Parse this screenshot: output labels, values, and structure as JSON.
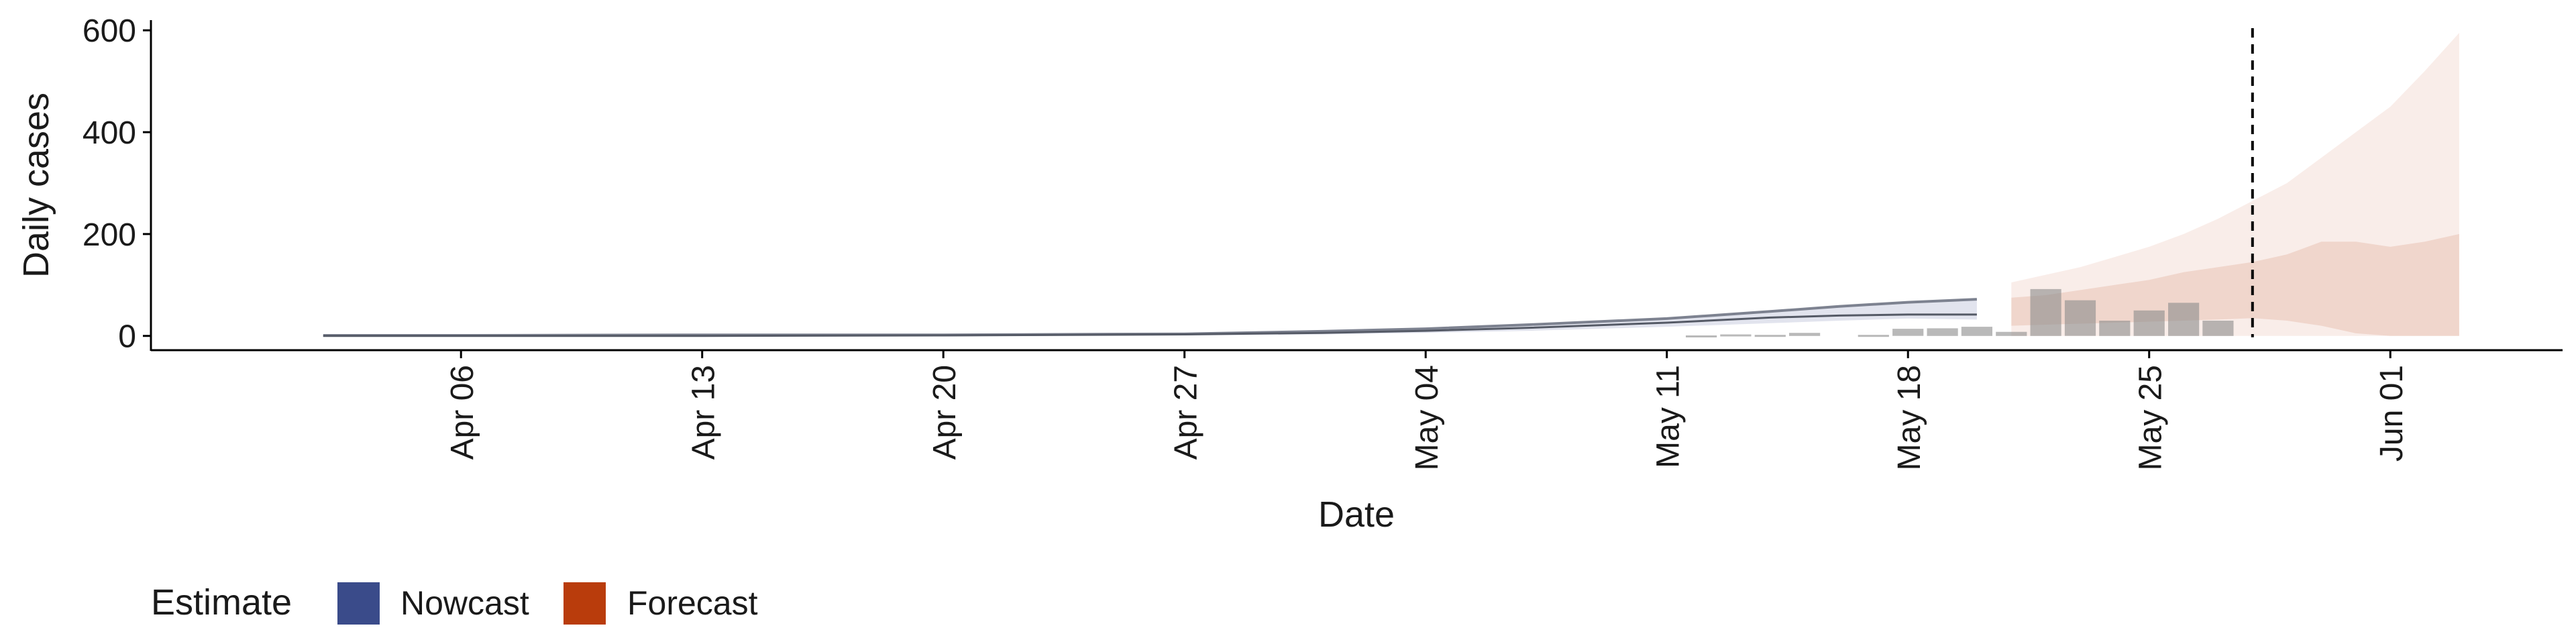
{
  "chart_data": {
    "type": "area",
    "xlabel": "Date",
    "ylabel": "Daily cases",
    "x_start": "2020-04-02",
    "x_end": "2020-06-03",
    "xlim": [
      "2020-03-28",
      "2020-06-06"
    ],
    "ylim": [
      -28,
      620
    ],
    "y_ticks": [
      0,
      200,
      400,
      600
    ],
    "x_ticks": [
      {
        "date": "2020-04-06",
        "label": "Apr 06"
      },
      {
        "date": "2020-04-13",
        "label": "Apr 13"
      },
      {
        "date": "2020-04-20",
        "label": "Apr 20"
      },
      {
        "date": "2020-04-27",
        "label": "Apr 27"
      },
      {
        "date": "2020-05-04",
        "label": "May 04"
      },
      {
        "date": "2020-05-11",
        "label": "May 11"
      },
      {
        "date": "2020-05-18",
        "label": "May 18"
      },
      {
        "date": "2020-05-25",
        "label": "May 25"
      },
      {
        "date": "2020-06-01",
        "label": "Jun 01"
      }
    ],
    "vline_date": "2020-05-28",
    "bars": [
      {
        "date": "2020-05-12",
        "value": 1
      },
      {
        "date": "2020-05-13",
        "value": 3
      },
      {
        "date": "2020-05-14",
        "value": 2
      },
      {
        "date": "2020-05-15",
        "value": 6
      },
      {
        "date": "2020-05-17",
        "value": 2
      },
      {
        "date": "2020-05-18",
        "value": 14
      },
      {
        "date": "2020-05-19",
        "value": 15
      },
      {
        "date": "2020-05-20",
        "value": 18
      },
      {
        "date": "2020-05-21",
        "value": 8
      },
      {
        "date": "2020-05-22",
        "value": 92
      },
      {
        "date": "2020-05-23",
        "value": 70
      },
      {
        "date": "2020-05-24",
        "value": 30
      },
      {
        "date": "2020-05-25",
        "value": 50
      },
      {
        "date": "2020-05-26",
        "value": 65
      },
      {
        "date": "2020-05-27",
        "value": 30
      }
    ],
    "series": [
      {
        "name": "Nowcast",
        "color": "#3a4b8a",
        "x": [
          "2020-04-02",
          "2020-04-06",
          "2020-04-13",
          "2020-04-20",
          "2020-04-27",
          "2020-05-01",
          "2020-05-04",
          "2020-05-07",
          "2020-05-11",
          "2020-05-14",
          "2020-05-16",
          "2020-05-18",
          "2020-05-20"
        ],
        "median": [
          0,
          0,
          0,
          1,
          3,
          6,
          10,
          16,
          26,
          36,
          40,
          42,
          42
        ],
        "lower": [
          0,
          0,
          0,
          0,
          1,
          3,
          6,
          10,
          18,
          25,
          30,
          34,
          32
        ],
        "upper": [
          1,
          1,
          2,
          2,
          4,
          9,
          14,
          22,
          34,
          48,
          58,
          66,
          72
        ]
      },
      {
        "name": "Forecast",
        "color": "#b93c0c",
        "x": [
          "2020-05-21",
          "2020-05-22",
          "2020-05-23",
          "2020-05-24",
          "2020-05-25",
          "2020-05-26",
          "2020-05-27",
          "2020-05-28",
          "2020-05-29",
          "2020-05-30",
          "2020-05-31",
          "2020-06-01",
          "2020-06-02",
          "2020-06-03"
        ],
        "median": [
          40,
          42,
          45,
          48,
          52,
          57,
          60,
          62,
          64,
          66,
          68,
          70,
          72,
          75
        ],
        "lower_inner": [
          20,
          22,
          24,
          26,
          28,
          30,
          32,
          35,
          30,
          20,
          5,
          0,
          0,
          0
        ],
        "upper_inner": [
          75,
          80,
          90,
          100,
          110,
          125,
          135,
          145,
          160,
          185,
          185,
          175,
          185,
          200
        ],
        "lower_outer": [
          0,
          0,
          0,
          0,
          0,
          0,
          0,
          0,
          0,
          0,
          0,
          0,
          0,
          0
        ],
        "upper_outer": [
          105,
          120,
          135,
          155,
          175,
          200,
          230,
          265,
          300,
          350,
          400,
          450,
          520,
          595
        ]
      }
    ],
    "legend": {
      "title": "Estimate",
      "position": "bottom-left",
      "items": [
        {
          "label": "Nowcast",
          "color": "#3a4b8a"
        },
        {
          "label": "Forecast",
          "color": "#b93c0c"
        }
      ]
    },
    "grid": false
  }
}
